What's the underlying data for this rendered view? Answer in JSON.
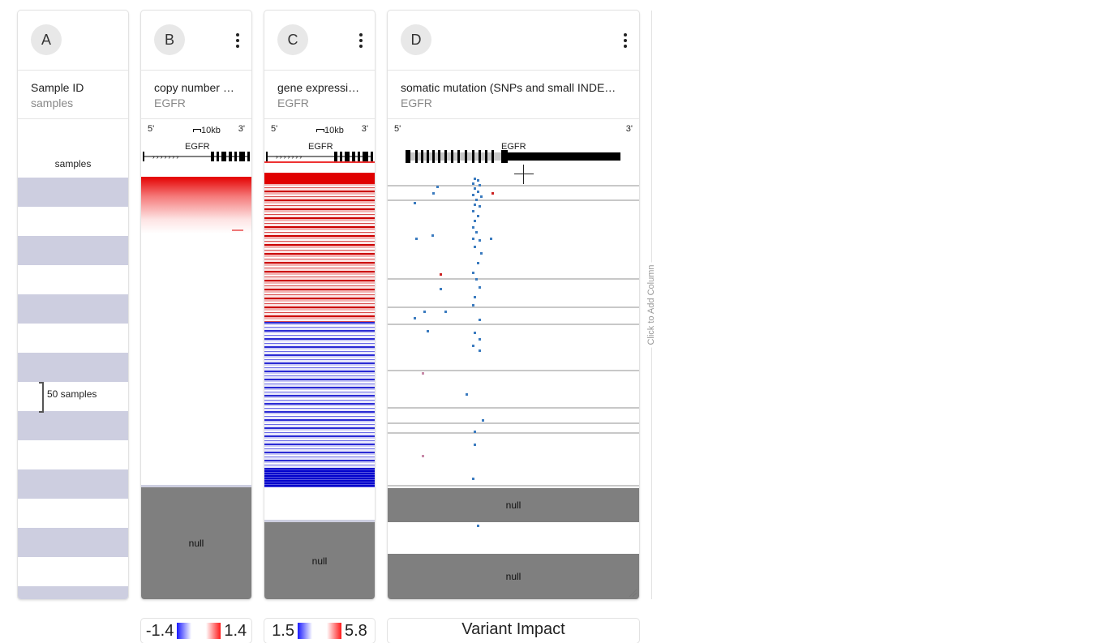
{
  "columns": [
    {
      "id": "A",
      "title": "Sample ID",
      "subtitle": "samples"
    },
    {
      "id": "B",
      "title": "copy number …",
      "subtitle": "EGFR",
      "null": "null"
    },
    {
      "id": "C",
      "title": "gene expressi…",
      "subtitle": "EGFR",
      "null": "null"
    },
    {
      "id": "D",
      "title": "somatic mutation (SNPs and small INDE…",
      "subtitle": "EGFR",
      "null_1": "null",
      "null_2": "null"
    }
  ],
  "samples_label": "samples",
  "zoom_label": "50 samples",
  "gene": {
    "name": "EGFR",
    "five": "5'",
    "three": "3'",
    "scale": "10kb"
  },
  "add_column": "Click to Add Column",
  "legends": {
    "b": {
      "min": "-1.4",
      "max": "1.4"
    },
    "c": {
      "min": "1.5",
      "max": "5.8"
    },
    "d": {
      "title": "Variant Impact"
    }
  },
  "colors": {
    "band": "#cdcee0",
    "null": "#7f7f7f",
    "amp": "#e00000",
    "del": "#1a1acc",
    "mut": "#3b7bbf"
  }
}
